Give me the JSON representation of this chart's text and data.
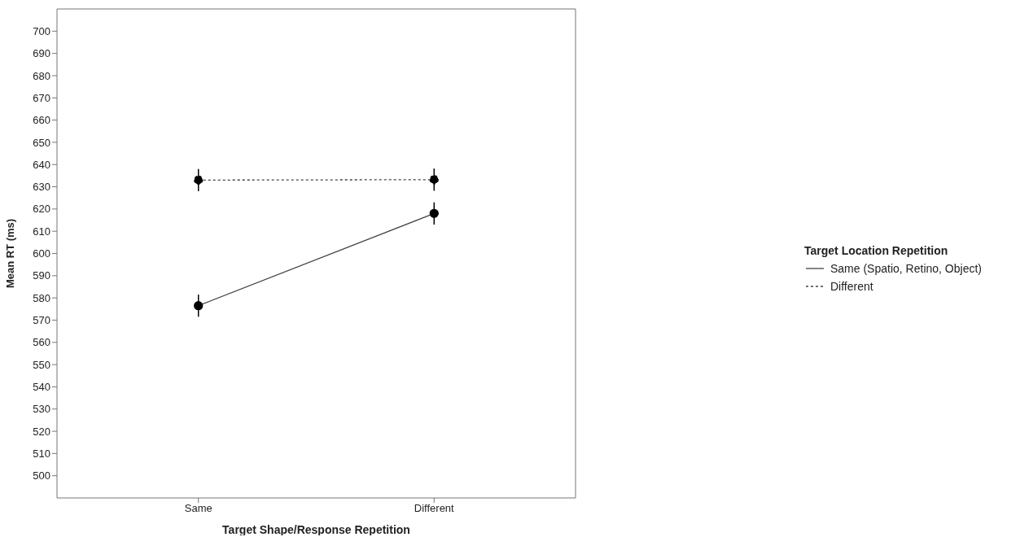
{
  "chart_data": {
    "type": "line",
    "xlabel": "Target Shape/Response Repetition",
    "ylabel": "Mean RT (ms)",
    "legend_title": "Target Location Repetition",
    "categories": [
      "Same",
      "Different"
    ],
    "series": [
      {
        "name": "Same (Spatio, Retino, Object)",
        "color": "#444444",
        "values": [
          576.5,
          618
        ],
        "errors": [
          5,
          5
        ],
        "line_style": "solid"
      },
      {
        "name": "Different",
        "color": "#444444",
        "values": [
          633,
          633.2
        ],
        "errors": [
          5,
          5
        ],
        "line_style": "dashed"
      }
    ],
    "ylim": [
      490,
      710
    ],
    "yticks": [
      500,
      510,
      520,
      530,
      540,
      550,
      560,
      570,
      580,
      590,
      600,
      610,
      620,
      630,
      640,
      650,
      660,
      670,
      680,
      690,
      700
    ],
    "legend": "right",
    "marker": "circle"
  }
}
